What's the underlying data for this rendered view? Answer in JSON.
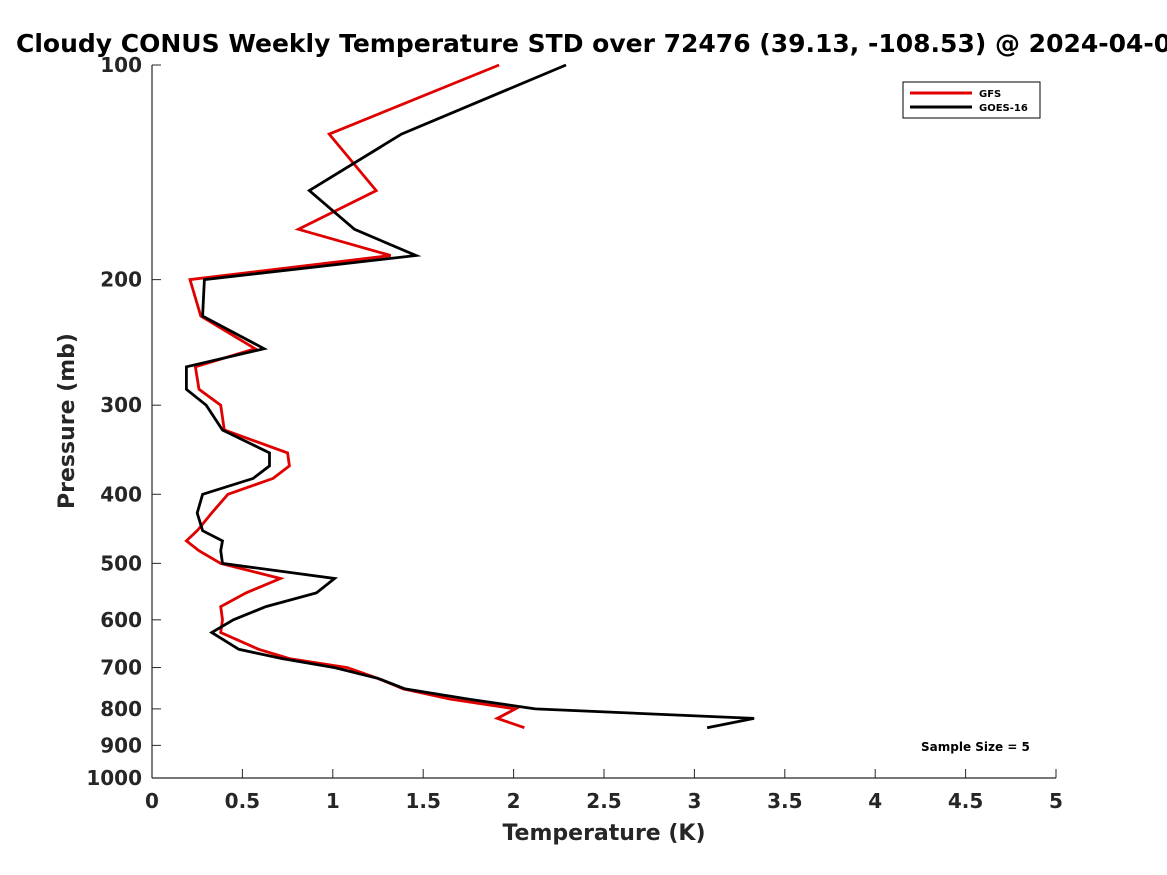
{
  "chart_data": {
    "type": "line",
    "title": "Cloudy CONUS Weekly Temperature STD over 72476 (39.13, -108.53) @ 2024-04-0",
    "xlabel": "Temperature (K)",
    "ylabel": "Pressure (mb)",
    "xlim": [
      0,
      5
    ],
    "ylim": [
      100,
      1000
    ],
    "y_scale": "log",
    "y_reversed": true,
    "x_ticks": [
      0,
      0.5,
      1,
      1.5,
      2,
      2.5,
      3,
      3.5,
      4,
      4.5,
      5
    ],
    "x_tick_labels": [
      "0",
      "0.5",
      "1",
      "1.5",
      "2",
      "2.5",
      "3",
      "3.5",
      "4",
      "4.5",
      "5"
    ],
    "y_ticks": [
      100,
      200,
      300,
      400,
      500,
      600,
      700,
      800,
      900,
      1000
    ],
    "y_tick_labels": [
      "100",
      "200",
      "300",
      "400",
      "500",
      "600",
      "700",
      "800",
      "900",
      "1000"
    ],
    "grid": false,
    "legend_position": "top-right",
    "annotation": "Sample Size = 5",
    "series": [
      {
        "name": "GFS",
        "color": "#e00000",
        "points": [
          [
            1.92,
            100
          ],
          [
            0.98,
            125
          ],
          [
            1.24,
            150
          ],
          [
            0.81,
            170
          ],
          [
            1.32,
            185
          ],
          [
            0.21,
            200
          ],
          [
            0.27,
            225
          ],
          [
            0.57,
            250
          ],
          [
            0.24,
            265
          ],
          [
            0.26,
            285
          ],
          [
            0.38,
            300
          ],
          [
            0.4,
            325
          ],
          [
            0.75,
            350
          ],
          [
            0.76,
            365
          ],
          [
            0.67,
            380
          ],
          [
            0.42,
            400
          ],
          [
            0.33,
            425
          ],
          [
            0.25,
            450
          ],
          [
            0.19,
            465
          ],
          [
            0.26,
            480
          ],
          [
            0.38,
            500
          ],
          [
            0.71,
            525
          ],
          [
            0.52,
            550
          ],
          [
            0.38,
            575
          ],
          [
            0.39,
            600
          ],
          [
            0.38,
            625
          ],
          [
            0.59,
            660
          ],
          [
            0.76,
            680
          ],
          [
            1.08,
            700
          ],
          [
            1.25,
            725
          ],
          [
            1.39,
            750
          ],
          [
            1.65,
            775
          ],
          [
            2.01,
            800
          ],
          [
            1.91,
            825
          ],
          [
            2.06,
            850
          ]
        ]
      },
      {
        "name": "GOES-16",
        "color": "#000000",
        "points": [
          [
            2.29,
            100
          ],
          [
            1.38,
            125
          ],
          [
            0.87,
            150
          ],
          [
            1.12,
            170
          ],
          [
            1.46,
            185
          ],
          [
            0.29,
            200
          ],
          [
            0.28,
            225
          ],
          [
            0.62,
            250
          ],
          [
            0.19,
            265
          ],
          [
            0.19,
            285
          ],
          [
            0.3,
            300
          ],
          [
            0.39,
            325
          ],
          [
            0.65,
            350
          ],
          [
            0.65,
            365
          ],
          [
            0.56,
            380
          ],
          [
            0.28,
            400
          ],
          [
            0.25,
            425
          ],
          [
            0.28,
            450
          ],
          [
            0.39,
            465
          ],
          [
            0.38,
            480
          ],
          [
            0.39,
            500
          ],
          [
            1.01,
            525
          ],
          [
            0.91,
            550
          ],
          [
            0.63,
            575
          ],
          [
            0.45,
            600
          ],
          [
            0.33,
            625
          ],
          [
            0.48,
            660
          ],
          [
            0.72,
            680
          ],
          [
            1.01,
            700
          ],
          [
            1.25,
            725
          ],
          [
            1.4,
            750
          ],
          [
            1.75,
            775
          ],
          [
            2.12,
            800
          ],
          [
            3.33,
            825
          ],
          [
            3.07,
            850
          ]
        ]
      }
    ]
  }
}
